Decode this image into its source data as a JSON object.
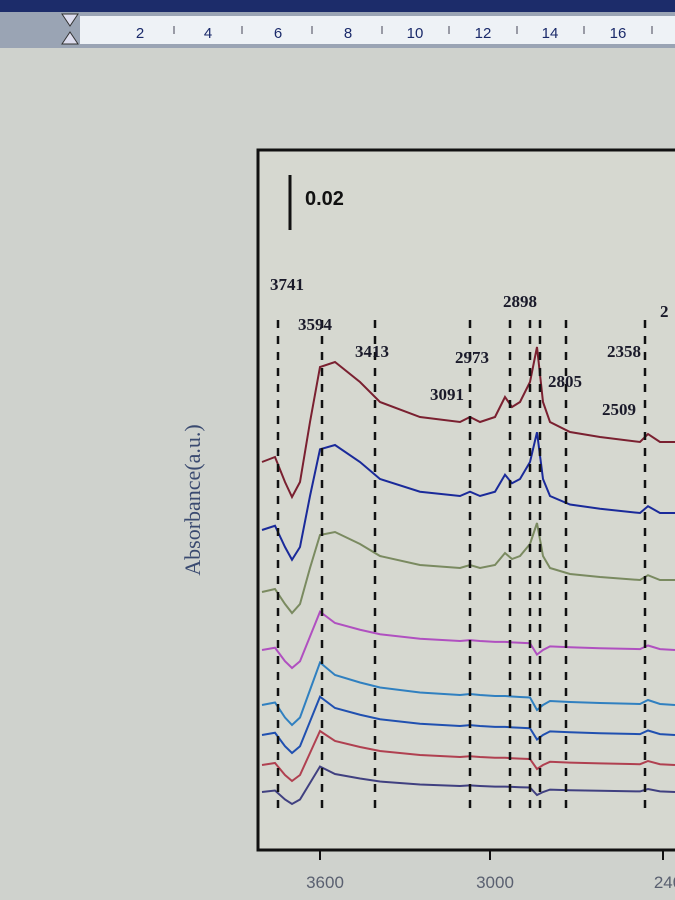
{
  "ruler": {
    "ticks": [
      "2",
      "4",
      "6",
      "8",
      "10",
      "12",
      "14",
      "16"
    ]
  },
  "chart": {
    "y_label": "Absorbance(a.u.)",
    "scale_bar": "0.02",
    "x_ticks": [
      "3600",
      "3000",
      "240"
    ],
    "peaks": [
      "3741",
      "3594",
      "3413",
      "2973",
      "3091",
      "2898",
      "2805",
      "2358",
      "2509",
      "2"
    ]
  }
}
